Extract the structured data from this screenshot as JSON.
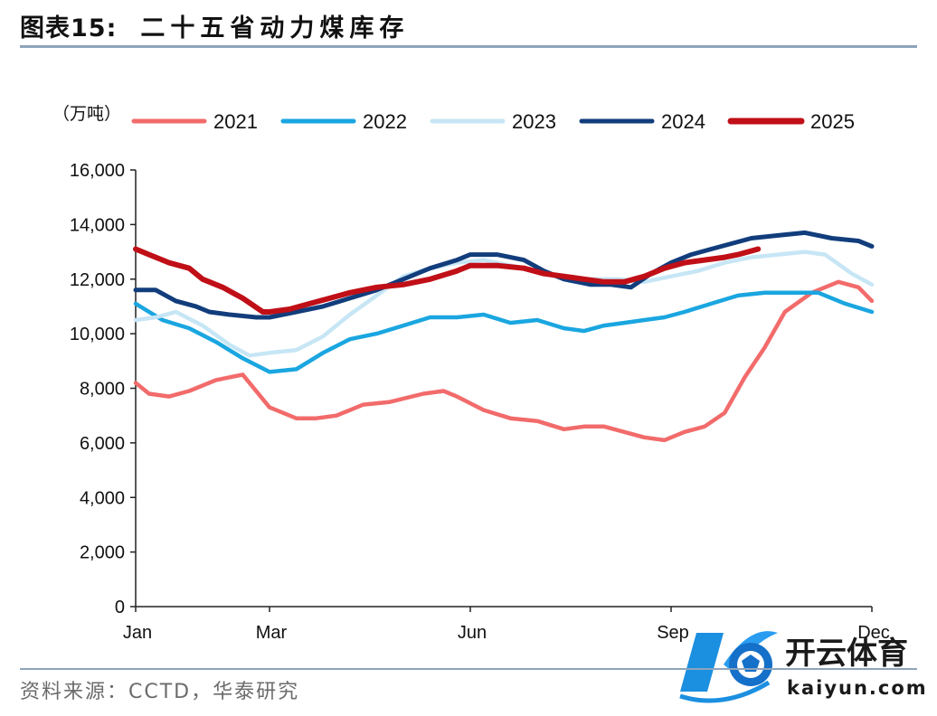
{
  "header": {
    "tag": "图表15:",
    "title": "二十五省动力煤库存"
  },
  "source": "资料来源：CCTD，华泰研究",
  "watermark": {
    "brand": "开云体育",
    "url": "kaiyun.com"
  },
  "colors": {
    "2021": "#f26b6b",
    "2022": "#1aa6e0",
    "2023": "#c7e6f5",
    "2024": "#123d7c",
    "2025": "#c00f17"
  },
  "chart_data": {
    "type": "line",
    "title": "二十五省动力煤库存",
    "unit_label": "（万吨）",
    "xlabel": "",
    "ylabel": "（万吨）",
    "ylim": [
      0,
      16000
    ],
    "yticks": [
      "0",
      "2,000",
      "4,000",
      "6,000",
      "8,000",
      "10,000",
      "12,000",
      "14,000",
      "16,000"
    ],
    "ytick_values": [
      0,
      2000,
      4000,
      6000,
      8000,
      10000,
      12000,
      14000,
      16000
    ],
    "xlim": [
      1,
      12
    ],
    "xticks": [
      "Jan",
      "Mar",
      "Jun",
      "Sep",
      "Dec"
    ],
    "xtick_values": [
      1,
      3,
      6,
      9,
      12
    ],
    "legend_position": "top",
    "series": [
      {
        "name": "2021",
        "x": [
          1.0,
          1.2,
          1.5,
          1.8,
          2.2,
          2.6,
          2.9,
          3.0,
          3.4,
          3.7,
          4.0,
          4.4,
          4.8,
          5.3,
          5.6,
          5.8,
          6.2,
          6.6,
          7.0,
          7.4,
          7.7,
          8.0,
          8.3,
          8.6,
          8.9,
          9.2,
          9.5,
          9.8,
          10.1,
          10.4,
          10.7,
          11.1,
          11.5,
          11.8,
          12.0
        ],
        "values": [
          8200,
          7800,
          7700,
          7900,
          8300,
          8500,
          7600,
          7300,
          6900,
          6900,
          7000,
          7400,
          7500,
          7800,
          7900,
          7700,
          7200,
          6900,
          6800,
          6500,
          6600,
          6600,
          6400,
          6200,
          6100,
          6400,
          6600,
          7100,
          8400,
          9500,
          10800,
          11500,
          11900,
          11700,
          11200
        ]
      },
      {
        "name": "2022",
        "x": [
          1.0,
          1.4,
          1.8,
          2.2,
          2.6,
          3.0,
          3.4,
          3.8,
          4.2,
          4.6,
          5.0,
          5.4,
          5.8,
          6.2,
          6.6,
          7.0,
          7.4,
          7.7,
          8.0,
          8.3,
          8.6,
          8.9,
          9.2,
          9.6,
          10.0,
          10.4,
          10.8,
          11.2,
          11.6,
          12.0
        ],
        "values": [
          11100,
          10500,
          10200,
          9700,
          9100,
          8600,
          8700,
          9300,
          9800,
          10000,
          10300,
          10600,
          10600,
          10700,
          10400,
          10500,
          10200,
          10100,
          10300,
          10400,
          10500,
          10600,
          10800,
          11100,
          11400,
          11500,
          11500,
          11500,
          11100,
          10800
        ]
      },
      {
        "name": "2023",
        "x": [
          1.0,
          1.3,
          1.6,
          2.0,
          2.4,
          2.7,
          3.0,
          3.4,
          3.8,
          4.2,
          4.6,
          5.0,
          5.4,
          5.8,
          6.2,
          6.6,
          7.0,
          7.4,
          7.8,
          8.2,
          8.6,
          9.0,
          9.4,
          9.8,
          10.2,
          10.6,
          11.0,
          11.3,
          11.7,
          12.0
        ],
        "values": [
          10500,
          10600,
          10800,
          10300,
          9600,
          9200,
          9300,
          9400,
          9900,
          10700,
          11400,
          12100,
          12400,
          12600,
          12700,
          12500,
          12300,
          12000,
          12000,
          12000,
          11900,
          12100,
          12300,
          12600,
          12800,
          12900,
          13000,
          12900,
          12200,
          11800
        ]
      },
      {
        "name": "2024",
        "x": [
          1.0,
          1.3,
          1.6,
          1.9,
          2.1,
          2.4,
          2.8,
          3.0,
          3.4,
          3.8,
          4.2,
          4.6,
          5.0,
          5.4,
          5.8,
          6.0,
          6.4,
          6.8,
          7.1,
          7.4,
          7.8,
          8.1,
          8.4,
          8.7,
          9.0,
          9.3,
          9.6,
          9.9,
          10.2,
          10.6,
          11.0,
          11.4,
          11.8,
          12.0
        ],
        "values": [
          11600,
          11600,
          11200,
          11000,
          10800,
          10700,
          10600,
          10600,
          10800,
          11000,
          11300,
          11600,
          12000,
          12400,
          12700,
          12900,
          12900,
          12700,
          12300,
          12000,
          11800,
          11800,
          11700,
          12200,
          12600,
          12900,
          13100,
          13300,
          13500,
          13600,
          13700,
          13500,
          13400,
          13200
        ]
      },
      {
        "name": "2025",
        "x": [
          1.0,
          1.2,
          1.5,
          1.8,
          2.0,
          2.3,
          2.6,
          2.9,
          3.0,
          3.3,
          3.6,
          3.9,
          4.2,
          4.6,
          5.0,
          5.4,
          5.8,
          6.0,
          6.4,
          6.8,
          7.1,
          7.4,
          7.7,
          8.0,
          8.3,
          8.6,
          8.9,
          9.2,
          9.5,
          9.8,
          10.0,
          10.3
        ],
        "values": [
          13100,
          12900,
          12600,
          12400,
          12000,
          11700,
          11300,
          10800,
          10800,
          10900,
          11100,
          11300,
          11500,
          11700,
          11800,
          12000,
          12300,
          12500,
          12500,
          12400,
          12200,
          12100,
          12000,
          11900,
          11900,
          12100,
          12400,
          12600,
          12700,
          12800,
          12900,
          13100
        ]
      }
    ]
  }
}
